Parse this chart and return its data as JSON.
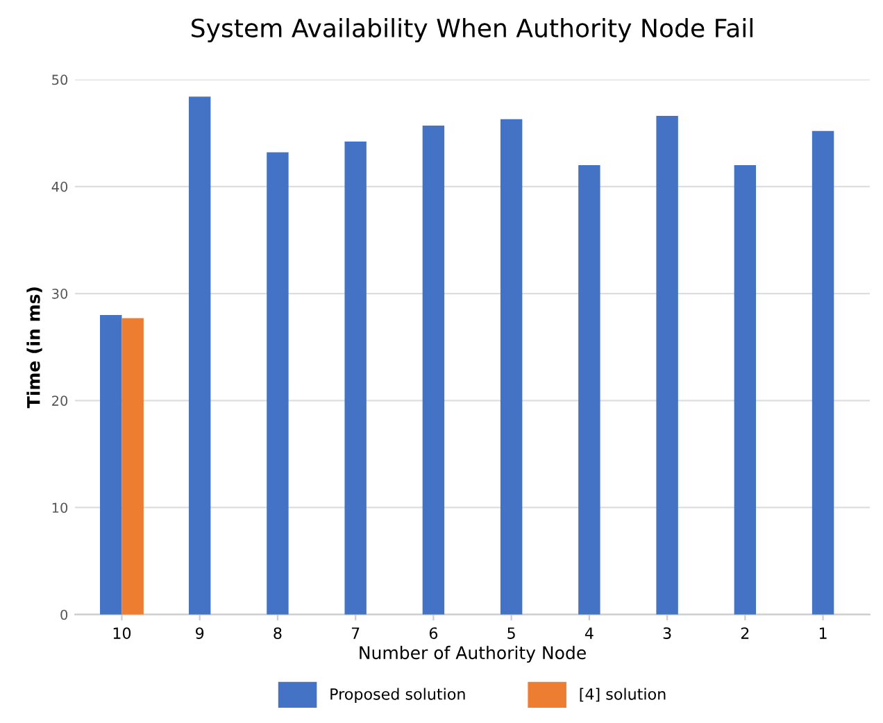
{
  "chart_data": {
    "type": "bar",
    "title": "System Availability When Authority Node Fail",
    "xlabel": "Number of Authority Node",
    "ylabel": "Time (in ms)",
    "categories": [
      "10",
      "9",
      "8",
      "7",
      "6",
      "5",
      "4",
      "3",
      "2",
      "1"
    ],
    "series": [
      {
        "name": "Proposed solution",
        "color": "#4472c4",
        "values": [
          28.0,
          48.4,
          43.2,
          44.2,
          45.7,
          46.3,
          42.0,
          46.6,
          42.0,
          45.2
        ]
      },
      {
        "name": "[4] solution",
        "color": "#ed7d31",
        "values": [
          27.7,
          null,
          null,
          null,
          null,
          null,
          null,
          null,
          null,
          null
        ]
      }
    ],
    "ylim": [
      0,
      50
    ],
    "yticks": [
      0,
      10,
      20,
      30,
      40,
      50
    ],
    "grid": "y",
    "legend": "bottom"
  }
}
